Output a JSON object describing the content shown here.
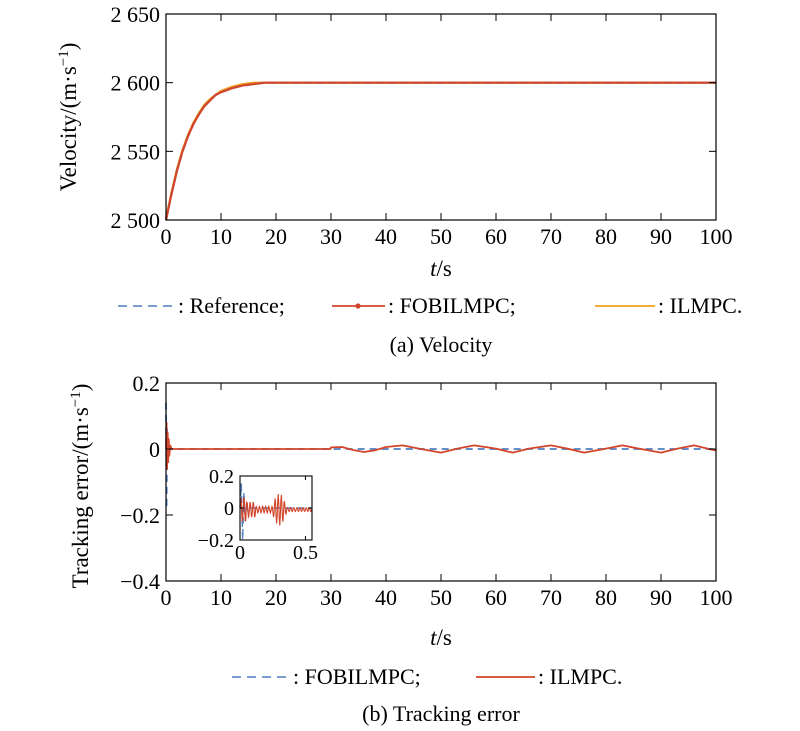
{
  "colors": {
    "reference": "#4f7fc4",
    "fobilmpc": "#d2452a",
    "ilmpc": "#f0a11c",
    "axis": "#000000"
  },
  "chart_data": [
    {
      "type": "line",
      "caption": "(a) Velocity",
      "xlabel_italic": "t",
      "xlabel_unit": "/s",
      "ylabel": "Velocity/(m·s",
      "ylabel_sup": "−1",
      "ylabel_close": ")",
      "xlim": [
        0,
        100
      ],
      "ylim": [
        2500,
        2650
      ],
      "x_ticks": [
        0,
        10,
        20,
        30,
        40,
        50,
        60,
        70,
        80,
        90,
        100
      ],
      "x_tick_labels": [
        "0",
        "10",
        "20",
        "30",
        "40",
        "50",
        "60",
        "70",
        "80",
        "90",
        "100"
      ],
      "y_ticks": [
        2500,
        2550,
        2600,
        2650
      ],
      "y_tick_labels": [
        "2 500",
        "2 550",
        "2 600",
        "2 650"
      ],
      "grid": false,
      "legend_position": "bottom",
      "legend": [
        {
          "label": ": Reference;",
          "style": "dashed",
          "color_key": "reference"
        },
        {
          "label": ": FOBILMPC;",
          "style": "solid-marker",
          "color_key": "fobilmpc"
        },
        {
          "label": ": ILMPC.",
          "style": "solid",
          "color_key": "ilmpc"
        }
      ],
      "series": [
        {
          "color_key": "ilmpc",
          "style": "solid",
          "x": [
            0,
            1,
            2,
            3,
            4,
            5,
            6,
            7,
            8,
            9,
            10,
            12,
            14,
            16,
            18,
            20,
            25,
            30,
            40,
            50,
            60,
            70,
            80,
            90,
            100
          ],
          "y": [
            2501,
            2520,
            2537,
            2551,
            2562,
            2571,
            2578,
            2584,
            2588,
            2591,
            2594,
            2597,
            2599,
            2600,
            2600,
            2600,
            2600,
            2600,
            2600,
            2600,
            2600,
            2600,
            2600,
            2600,
            2600
          ]
        },
        {
          "color_key": "reference",
          "style": "dashed",
          "x": [
            0,
            1,
            2,
            3,
            4,
            5,
            6,
            7,
            8,
            9,
            10,
            12,
            14,
            16,
            18,
            20,
            25,
            30,
            40,
            50,
            60,
            70,
            80,
            90,
            100
          ],
          "y": [
            2500,
            2519,
            2536,
            2550,
            2561,
            2570,
            2577,
            2583,
            2587,
            2591,
            2593,
            2596,
            2598,
            2599,
            2600,
            2600,
            2600,
            2600,
            2600,
            2600,
            2600,
            2600,
            2600,
            2600,
            2600
          ]
        },
        {
          "color_key": "fobilmpc",
          "style": "solid",
          "x": [
            0,
            1,
            2,
            3,
            4,
            5,
            6,
            7,
            8,
            9,
            10,
            12,
            14,
            16,
            18,
            20,
            25,
            30,
            40,
            50,
            60,
            70,
            80,
            90,
            100
          ],
          "y": [
            2500,
            2519,
            2536,
            2550,
            2561,
            2570,
            2577,
            2583,
            2587,
            2591,
            2593,
            2596,
            2598,
            2599,
            2600,
            2600,
            2600,
            2600,
            2600,
            2600,
            2600,
            2600,
            2600,
            2600,
            2600
          ]
        }
      ]
    },
    {
      "type": "line",
      "caption": "(b) Tracking error",
      "xlabel_italic": "t",
      "xlabel_unit": "/s",
      "ylabel": "Tracking error/(m·s",
      "ylabel_sup": "−1",
      "ylabel_close": ")",
      "xlim": [
        0,
        100
      ],
      "ylim": [
        -0.4,
        0.2
      ],
      "x_ticks": [
        0,
        10,
        20,
        30,
        40,
        50,
        60,
        70,
        80,
        90,
        100
      ],
      "x_tick_labels": [
        "0",
        "10",
        "20",
        "30",
        "40",
        "50",
        "60",
        "70",
        "80",
        "90",
        "100"
      ],
      "y_ticks": [
        -0.4,
        -0.2,
        0,
        0.2
      ],
      "y_tick_labels": [
        "−0.4",
        "−0.2",
        "0",
        "0.2"
      ],
      "grid": false,
      "legend_position": "bottom",
      "legend": [
        {
          "label": ": FOBILMPC;",
          "style": "dashed",
          "color_key": "reference"
        },
        {
          "label": ": ILMPC.",
          "style": "solid",
          "color_key": "fobilmpc"
        }
      ],
      "series": [
        {
          "color_key": "reference",
          "style": "dashed",
          "x": [
            0,
            0.1,
            0.2,
            0.3,
            0.4,
            0.5,
            0.7,
            1,
            2,
            5,
            10,
            30,
            50,
            70,
            100
          ],
          "y": [
            0.14,
            -0.18,
            0.06,
            -0.03,
            0.01,
            0,
            0,
            0,
            0,
            0,
            0,
            0,
            0,
            0,
            0
          ]
        },
        {
          "color_key": "fobilmpc",
          "style": "solid",
          "x": [
            0,
            0.1,
            0.2,
            0.3,
            0.4,
            0.5,
            0.6,
            0.8,
            1,
            2,
            5,
            10,
            20,
            29.9,
            30,
            32,
            34,
            36,
            38,
            40,
            43,
            46,
            50,
            53,
            56,
            60,
            63,
            66,
            70,
            73,
            76,
            80,
            83,
            86,
            90,
            93,
            96,
            100
          ],
          "y": [
            0,
            0.08,
            -0.06,
            0.05,
            -0.04,
            0.03,
            -0.02,
            0.01,
            0,
            0,
            0,
            0,
            0,
            0,
            0.005,
            0.006,
            -0.003,
            -0.009,
            -0.004,
            0.006,
            0.011,
            0.001,
            -0.011,
            0.001,
            0.011,
            0.001,
            -0.011,
            0.001,
            0.011,
            0.001,
            -0.011,
            0.001,
            0.011,
            0.001,
            -0.011,
            0.001,
            0.011,
            -0.005
          ]
        }
      ],
      "inset": {
        "xlim": [
          0,
          0.55
        ],
        "ylim": [
          -0.2,
          0.2
        ],
        "x_ticks": [
          0,
          0.5
        ],
        "x_tick_labels": [
          "0",
          "0.5"
        ],
        "y_ticks": [
          -0.2,
          0,
          0.2
        ],
        "y_tick_labels": [
          "−0.2",
          "0",
          "0.2"
        ],
        "series": [
          {
            "color_key": "reference",
            "style": "dashed",
            "x": [
              0,
              0.01,
              0.02,
              0.03,
              0.04,
              0.05,
              0.06,
              0.07,
              0.08,
              0.1,
              0.55
            ],
            "y": [
              0,
              0.15,
              -0.2,
              0.1,
              -0.08,
              0.04,
              -0.02,
              0.01,
              0,
              0,
              0
            ]
          }
        ]
      }
    }
  ]
}
